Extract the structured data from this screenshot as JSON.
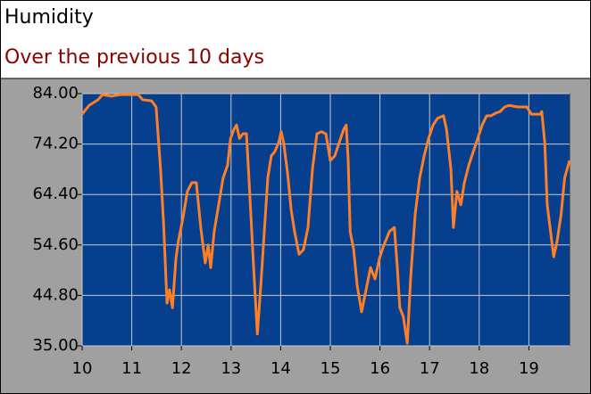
{
  "chart_data": {
    "type": "line",
    "title": "Humidity",
    "subtitle": "Over the previous 10 days",
    "x": [
      10.0,
      10.14,
      10.32,
      10.41,
      10.59,
      10.77,
      11.04,
      11.13,
      11.22,
      11.4,
      11.49,
      11.58,
      11.64,
      11.71,
      11.76,
      11.82,
      11.89,
      11.94,
      12.03,
      12.12,
      12.21,
      12.3,
      12.39,
      12.48,
      12.54,
      12.59,
      12.66,
      12.75,
      12.84,
      12.93,
      12.99,
      13.06,
      13.11,
      13.17,
      13.24,
      13.31,
      13.36,
      13.45,
      13.53,
      13.6,
      13.67,
      13.74,
      13.81,
      13.88,
      13.96,
      14.01,
      14.06,
      14.14,
      14.21,
      14.28,
      14.37,
      14.46,
      14.55,
      14.64,
      14.73,
      14.82,
      14.91,
      15.0,
      15.09,
      15.18,
      15.27,
      15.32,
      15.36,
      15.4,
      15.47,
      15.54,
      15.63,
      15.72,
      15.81,
      15.9,
      15.99,
      16.08,
      16.19,
      16.29,
      16.35,
      16.4,
      16.47,
      16.55,
      16.62,
      16.71,
      16.8,
      16.89,
      16.98,
      17.07,
      17.16,
      17.28,
      17.34,
      17.43,
      17.48,
      17.55,
      17.63,
      17.7,
      17.79,
      17.88,
      17.97,
      18.06,
      18.15,
      18.24,
      18.33,
      18.42,
      18.51,
      18.6,
      18.78,
      18.96,
      19.05,
      19.23,
      19.26,
      19.32,
      19.37,
      19.46,
      19.5,
      19.57,
      19.65,
      19.72,
      19.82
    ],
    "series": [
      {
        "color": "#ff7f27",
        "values": [
          80.0,
          81.7,
          82.8,
          83.8,
          83.5,
          83.8,
          83.8,
          83.8,
          82.8,
          82.6,
          81.4,
          69.3,
          58.9,
          43.3,
          45.9,
          42.4,
          52.0,
          55.4,
          59.8,
          65.0,
          66.7,
          66.7,
          58.0,
          51.1,
          54.6,
          50.2,
          57.2,
          62.4,
          67.6,
          70.1,
          75.3,
          77.1,
          77.9,
          75.3,
          76.2,
          76.2,
          67.6,
          51.1,
          37.3,
          46.8,
          57.2,
          67.6,
          71.9,
          72.7,
          74.5,
          76.6,
          74.5,
          68.4,
          61.5,
          57.2,
          52.8,
          53.7,
          58.0,
          69.3,
          76.2,
          76.6,
          76.2,
          71.0,
          71.9,
          74.5,
          77.1,
          77.9,
          71.0,
          57.2,
          53.7,
          46.8,
          41.6,
          45.9,
          50.2,
          48.0,
          52.0,
          54.6,
          57.2,
          58.0,
          50.2,
          42.4,
          40.7,
          35.5,
          48.5,
          60.6,
          67.6,
          71.9,
          75.3,
          77.9,
          79.2,
          79.7,
          77.1,
          69.3,
          58.0,
          65.0,
          62.4,
          66.7,
          70.1,
          72.7,
          75.3,
          77.9,
          79.7,
          79.7,
          80.2,
          80.5,
          81.4,
          81.7,
          81.4,
          81.4,
          80.0,
          80.0,
          80.5,
          74.5,
          62.4,
          55.4,
          52.3,
          55.4,
          60.6,
          67.6,
          71.0
        ]
      }
    ],
    "xlim": [
      10,
      19.82
    ],
    "xticks": [
      10,
      11,
      12,
      13,
      14,
      15,
      16,
      17,
      18,
      19
    ],
    "ylim": [
      35,
      84
    ],
    "yticks": [
      {
        "value": 35,
        "label": "35.00"
      },
      {
        "value": 44.8,
        "label": "44.80"
      },
      {
        "value": 54.6,
        "label": "54.60"
      },
      {
        "value": 64.4,
        "label": "64.40"
      },
      {
        "value": 74.2,
        "label": "74.20"
      },
      {
        "value": 84,
        "label": "84.00"
      }
    ],
    "grid": true
  }
}
